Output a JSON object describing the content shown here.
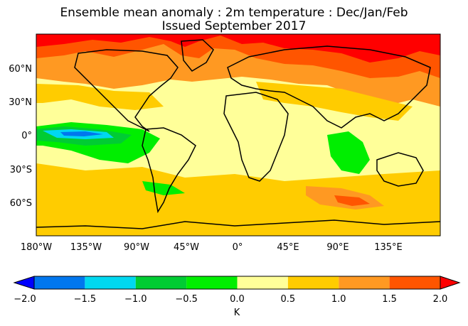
{
  "title_line1": "Ensemble mean anomaly : 2m temperature : Dec/Jan/Feb",
  "title_line2": "Issued September 2017",
  "map": {
    "lat_ticks": [
      "60°N",
      "30°N",
      "0°",
      "30°S",
      "60°S"
    ],
    "lon_ticks": [
      "180°W",
      "135°W",
      "90°W",
      "45°W",
      "0°",
      "45°E",
      "90°E",
      "135°E"
    ]
  },
  "colorbar": {
    "unit": "K",
    "ticks": [
      "−2.0",
      "−1.5",
      "−1.0",
      "−0.5",
      "0.0",
      "0.5",
      "1.0",
      "1.5",
      "2.0"
    ],
    "bins": [
      {
        "min": -2.0,
        "max": -1.5,
        "color": "#0077ee"
      },
      {
        "min": -1.5,
        "max": -1.0,
        "color": "#00d8f0"
      },
      {
        "min": -1.0,
        "max": -0.5,
        "color": "#00cc33"
      },
      {
        "min": -0.5,
        "max": 0.0,
        "color": "#00ee00"
      },
      {
        "min": 0.0,
        "max": 0.5,
        "color": "#ffff99"
      },
      {
        "min": 0.5,
        "max": 1.0,
        "color": "#ffcc00"
      },
      {
        "min": 1.0,
        "max": 1.5,
        "color": "#ff9922"
      },
      {
        "min": 1.5,
        "max": 2.0,
        "color": "#ff5500"
      }
    ],
    "under_color": "#0000ff",
    "over_color": "#ff0000"
  }
}
